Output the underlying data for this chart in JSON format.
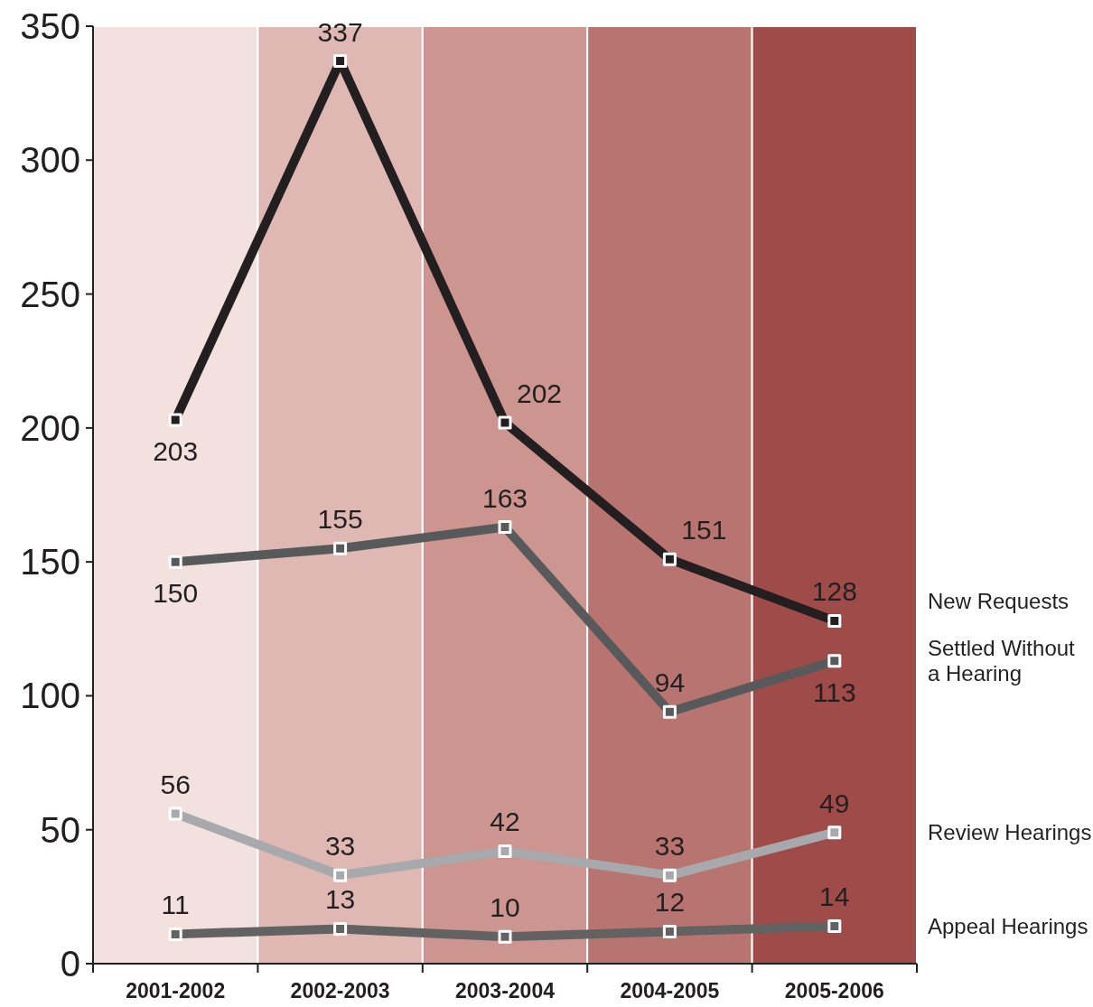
{
  "chart_data": {
    "type": "line",
    "categories": [
      "2001-2002",
      "2002-2003",
      "2003-2004",
      "2004-2005",
      "2005-2006"
    ],
    "series": [
      {
        "name": "New Requests",
        "color": "#231f20",
        "values": [
          203,
          337,
          202,
          151,
          128
        ]
      },
      {
        "name": "Settled Without a Hearing",
        "color": "#58595b",
        "values": [
          150,
          155,
          163,
          94,
          113
        ]
      },
      {
        "name": "Review Hearings",
        "color": "#a7a9ac",
        "values": [
          56,
          33,
          42,
          33,
          49
        ]
      },
      {
        "name": "Appeal Hearings",
        "color": "#626262",
        "values": [
          11,
          13,
          10,
          12,
          14
        ]
      }
    ],
    "ylim": [
      0,
      350
    ],
    "yticks": [
      0,
      50,
      100,
      150,
      200,
      250,
      300,
      350
    ],
    "grid": false,
    "marker": "square",
    "line_style": "solid",
    "data_labels": true,
    "bands": [
      {
        "axis": "x",
        "from": "2001-2002",
        "to": "2001-2002",
        "color": "#f2e1de"
      },
      {
        "axis": "x",
        "from": "2002-2003",
        "to": "2002-2003",
        "color": "#dfb8b3"
      },
      {
        "axis": "x",
        "from": "2003-2004",
        "to": "2003-2004",
        "color": "#cc9590"
      },
      {
        "axis": "x",
        "from": "2004-2005",
        "to": "2004-2005",
        "color": "#b87470"
      },
      {
        "axis": "x",
        "from": "2005-2006",
        "to": "2005-2006",
        "color": "#9f4b4a"
      }
    ]
  }
}
